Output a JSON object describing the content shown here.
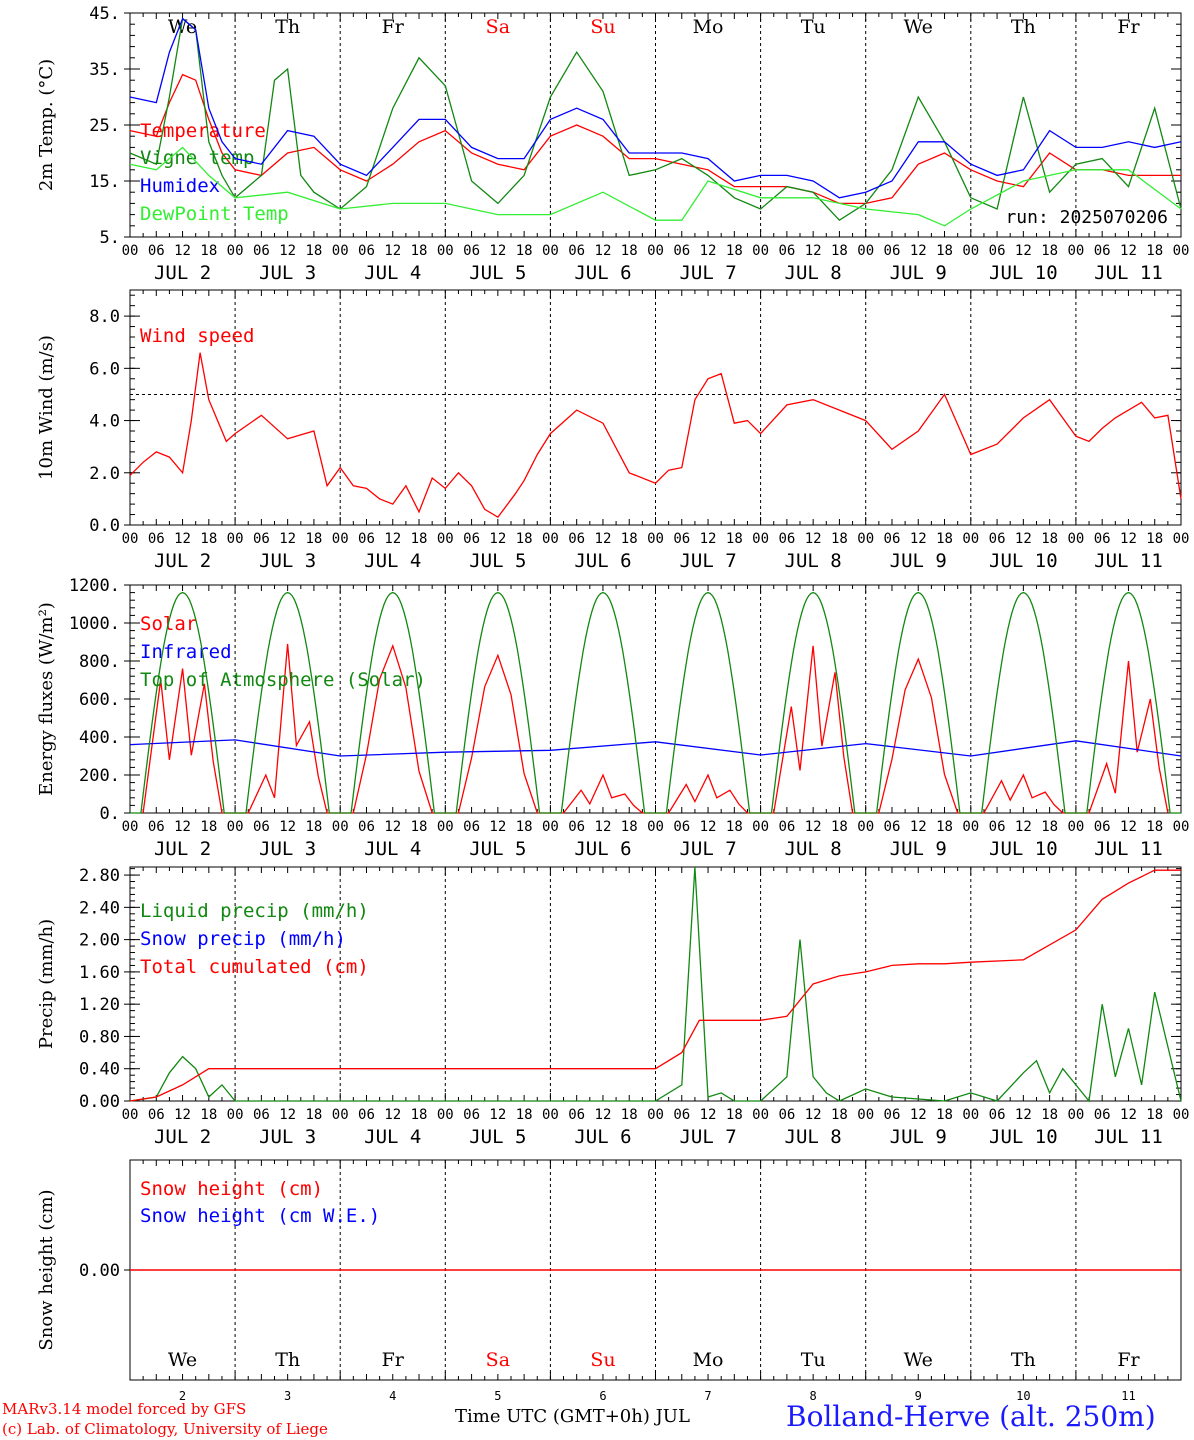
{
  "run_label": "run: 2025070206",
  "footer": {
    "model": "MARv3.14 model forced by GFS",
    "lab": "(c) Lab. of Climatology, University of Liege",
    "axis_title": "Time UTC (GMT+0h) JUL",
    "station": "Bolland-Herve (alt. 250m)"
  },
  "colors": {
    "red": "#ff0000",
    "green": "#118811",
    "blue": "#0000ff",
    "lightgreen": "#33ee33",
    "weekend": "#ff0000",
    "text": "#000000"
  },
  "days": {
    "weekday": [
      "We",
      "Th",
      "Fr",
      "Sa",
      "Su",
      "Mo",
      "Tu",
      "We",
      "Th",
      "Fr"
    ],
    "weekend_flags": [
      false,
      false,
      false,
      true,
      true,
      false,
      false,
      false,
      false,
      false
    ],
    "date_labels": [
      "JUL  2",
      "JUL  3",
      "JUL  4",
      "JUL  5",
      "JUL  6",
      "JUL  7",
      "JUL  8",
      "JUL  9",
      "JUL 10",
      "JUL 11"
    ],
    "day_numbers": [
      "2",
      "3",
      "4",
      "5",
      "6",
      "7",
      "8",
      "9",
      "10",
      "11"
    ],
    "hour_labels": [
      "00",
      "06",
      "12",
      "18"
    ],
    "end_hour_label": "00"
  },
  "chart_data": [
    {
      "type": "line",
      "ylabel": "2m Temp. (°C)",
      "ylim": [
        5,
        45
      ],
      "yticks": [
        "5.",
        "15.",
        "25.",
        "35.",
        "45."
      ],
      "ytick_values": [
        5,
        15,
        25,
        35,
        45
      ],
      "x_unit": "hours since JUL 2 00 UTC",
      "series": [
        {
          "name": "Temperature",
          "color": "red",
          "x": [
            0,
            6,
            9,
            12,
            15,
            18,
            21,
            24,
            30,
            36,
            42,
            48,
            54,
            60,
            66,
            72,
            78,
            84,
            90,
            96,
            102,
            108,
            114,
            120,
            126,
            132,
            138,
            144,
            150,
            156,
            162,
            168,
            174,
            180,
            186,
            192,
            198,
            204,
            210,
            216,
            222,
            228,
            234,
            240
          ],
          "values": [
            24,
            23,
            29,
            34,
            33,
            26,
            20,
            17,
            16,
            20,
            21,
            17,
            15,
            18,
            22,
            24,
            20,
            18,
            17,
            23,
            25,
            23,
            19,
            19,
            18,
            17,
            14,
            14,
            14,
            13,
            11,
            11,
            12,
            18,
            20,
            17,
            15,
            14,
            20,
            17,
            17,
            16,
            16,
            16
          ]
        },
        {
          "name": "Vigne temp",
          "color": "green",
          "x": [
            0,
            6,
            9,
            12,
            15,
            18,
            21,
            24,
            30,
            33,
            36,
            39,
            42,
            48,
            54,
            60,
            66,
            72,
            78,
            84,
            90,
            96,
            102,
            108,
            114,
            120,
            126,
            132,
            138,
            144,
            150,
            156,
            162,
            168,
            174,
            180,
            186,
            192,
            198,
            204,
            210,
            216,
            222,
            228,
            234,
            240
          ],
          "values": [
            20,
            18,
            30,
            44,
            42,
            22,
            16,
            12,
            16,
            33,
            35,
            16,
            13,
            10,
            14,
            28,
            37,
            32,
            15,
            11,
            16,
            30,
            38,
            31,
            16,
            17,
            19,
            16,
            12,
            10,
            14,
            13,
            8,
            11,
            17,
            30,
            22,
            12,
            10,
            30,
            13,
            18,
            19,
            14,
            28,
            10
          ]
        },
        {
          "name": "Humidex",
          "color": "blue",
          "x": [
            0,
            6,
            9,
            12,
            15,
            18,
            21,
            24,
            30,
            36,
            42,
            48,
            54,
            60,
            66,
            72,
            78,
            84,
            90,
            96,
            102,
            108,
            114,
            120,
            126,
            132,
            138,
            144,
            150,
            156,
            162,
            168,
            174,
            180,
            186,
            192,
            198,
            204,
            210,
            216,
            222,
            228,
            234,
            240
          ],
          "values": [
            30,
            29,
            38,
            44,
            42,
            28,
            22,
            19,
            18,
            24,
            23,
            18,
            16,
            21,
            26,
            26,
            21,
            19,
            19,
            26,
            28,
            26,
            20,
            20,
            20,
            19,
            15,
            16,
            16,
            15,
            12,
            13,
            15,
            22,
            22,
            18,
            16,
            17,
            24,
            21,
            21,
            22,
            21,
            22
          ]
        },
        {
          "name": "DewPoint Temp",
          "color": "lightgreen",
          "x": [
            0,
            6,
            12,
            18,
            24,
            36,
            48,
            60,
            72,
            84,
            96,
            108,
            120,
            126,
            132,
            144,
            156,
            168,
            180,
            186,
            192,
            204,
            216,
            228,
            240
          ],
          "values": [
            18,
            17,
            21,
            16,
            12,
            13,
            10,
            11,
            11,
            9,
            9,
            13,
            8,
            8,
            15,
            12,
            12,
            10,
            9,
            7,
            10,
            15,
            17,
            17,
            10
          ]
        }
      ]
    },
    {
      "type": "line",
      "ylabel": "10m Wind (m/s)",
      "ylim": [
        0,
        9
      ],
      "yticks": [
        "0.0",
        "2.0",
        "4.0",
        "6.0",
        "8.0"
      ],
      "ytick_values": [
        0,
        2,
        4,
        6,
        8
      ],
      "reference_line": 5,
      "series": [
        {
          "name": "Wind speed",
          "color": "red",
          "x": [
            0,
            3,
            6,
            9,
            12,
            14,
            16,
            18,
            20,
            22,
            24,
            30,
            36,
            42,
            45,
            48,
            51,
            54,
            57,
            60,
            63,
            66,
            69,
            72,
            75,
            78,
            81,
            84,
            88,
            90,
            93,
            96,
            102,
            108,
            114,
            120,
            123,
            126,
            129,
            132,
            135,
            138,
            141,
            144,
            150,
            156,
            162,
            168,
            174,
            180,
            186,
            192,
            198,
            204,
            210,
            216,
            219,
            222,
            225,
            228,
            231,
            234,
            237,
            240
          ],
          "values": [
            1.9,
            2.4,
            2.8,
            2.6,
            2.0,
            4.0,
            6.6,
            4.8,
            4.0,
            3.2,
            3.5,
            4.2,
            3.3,
            3.6,
            1.5,
            2.2,
            1.5,
            1.4,
            1.0,
            0.8,
            1.5,
            0.5,
            1.8,
            1.4,
            2.0,
            1.5,
            0.6,
            0.3,
            1.2,
            1.7,
            2.7,
            3.5,
            4.4,
            3.9,
            2.0,
            1.6,
            2.1,
            2.2,
            4.8,
            5.6,
            5.8,
            3.9,
            4.0,
            3.5,
            4.6,
            4.8,
            4.4,
            4.0,
            2.9,
            3.6,
            5.0,
            2.7,
            3.1,
            4.1,
            4.8,
            3.4,
            3.2,
            3.7,
            4.1,
            4.4,
            4.7,
            4.1,
            4.2,
            1.0
          ]
        }
      ]
    },
    {
      "type": "line",
      "ylabel": "Energy fluxes (W/m²)",
      "ylim": [
        0,
        1200
      ],
      "yticks": [
        "0.",
        "200.",
        "400.",
        "600.",
        "800.",
        "1000.",
        "1200."
      ],
      "ytick_values": [
        0,
        200,
        400,
        600,
        800,
        1000,
        1200
      ],
      "series": [
        {
          "name": "Solar",
          "color": "red",
          "peaks": [
            {
              "day": 0,
              "values": [
                700,
                760,
                680
              ]
            },
            {
              "day": 1,
              "values": [
                200,
                890,
                480
              ]
            },
            {
              "day": 2,
              "values": [
                880
              ]
            },
            {
              "day": 3,
              "values": [
                830
              ]
            },
            {
              "day": 4,
              "values": [
                120,
                200,
                100
              ]
            },
            {
              "day": 5,
              "values": [
                150,
                200,
                120
              ]
            },
            {
              "day": 6,
              "values": [
                560,
                880,
                740
              ]
            },
            {
              "day": 7,
              "values": [
                810
              ]
            },
            {
              "day": 8,
              "values": [
                170,
                200,
                110
              ]
            },
            {
              "day": 9,
              "values": [
                260,
                800,
                600
              ]
            }
          ]
        },
        {
          "name": "Infrared",
          "color": "blue",
          "x": [
            0,
            24,
            48,
            72,
            96,
            120,
            144,
            168,
            192,
            216,
            240
          ],
          "values": [
            360,
            385,
            300,
            320,
            330,
            375,
            305,
            365,
            300,
            380,
            300
          ]
        },
        {
          "name": "Top of Atmosphere (Solar)",
          "color": "green",
          "daily_peak": 1160
        }
      ]
    },
    {
      "type": "line",
      "ylabel": "Precip (mm/h)",
      "ylim": [
        0,
        2.9
      ],
      "yticks": [
        "0.00",
        "0.40",
        "0.80",
        "1.20",
        "1.60",
        "2.00",
        "2.40",
        "2.80"
      ],
      "ytick_values": [
        0,
        0.4,
        0.8,
        1.2,
        1.6,
        2.0,
        2.4,
        2.8
      ],
      "series": [
        {
          "name": "Liquid precip (mm/h)",
          "color": "green",
          "x": [
            0,
            6,
            9,
            12,
            15,
            18,
            21,
            24,
            96,
            120,
            126,
            129,
            132,
            135,
            138,
            144,
            150,
            153,
            156,
            159,
            162,
            168,
            174,
            186,
            192,
            198,
            204,
            207,
            210,
            213,
            216,
            219,
            222,
            225,
            228,
            231,
            234,
            240
          ],
          "values": [
            0,
            0.05,
            0.35,
            0.55,
            0.4,
            0.05,
            0.2,
            0,
            0,
            0,
            0.2,
            2.9,
            0.05,
            0.1,
            0,
            0,
            0.3,
            2.0,
            0.3,
            0.1,
            0,
            0.15,
            0.05,
            0,
            0.1,
            0,
            0.35,
            0.5,
            0.1,
            0.4,
            0.2,
            0,
            1.2,
            0.3,
            0.9,
            0.2,
            1.35,
            0
          ]
        },
        {
          "name": "Snow precip (mm/h)",
          "color": "blue"
        },
        {
          "name": "Total cumulated (cm)",
          "color": "red",
          "x": [
            0,
            6,
            12,
            18,
            24,
            60,
            96,
            120,
            126,
            130,
            144,
            150,
            156,
            162,
            168,
            174,
            180,
            186,
            192,
            204,
            216,
            222,
            228,
            234,
            240
          ],
          "values": [
            0,
            0.05,
            0.2,
            0.4,
            0.4,
            0.4,
            0.4,
            0.4,
            0.6,
            1.0,
            1.0,
            1.05,
            1.45,
            1.55,
            1.6,
            1.68,
            1.7,
            1.7,
            1.72,
            1.75,
            2.12,
            2.5,
            2.7,
            2.86,
            2.86
          ]
        }
      ]
    },
    {
      "type": "line",
      "ylabel": "Snow height (cm)",
      "ylim": [
        -1,
        1
      ],
      "yticks": [
        "0.00"
      ],
      "ytick_values": [
        0
      ],
      "series": [
        {
          "name": "Snow height (cm)",
          "color": "red",
          "x": [
            0,
            240
          ],
          "values": [
            0,
            0
          ]
        },
        {
          "name": "Snow height (cm W.E.)",
          "color": "blue"
        }
      ]
    }
  ]
}
